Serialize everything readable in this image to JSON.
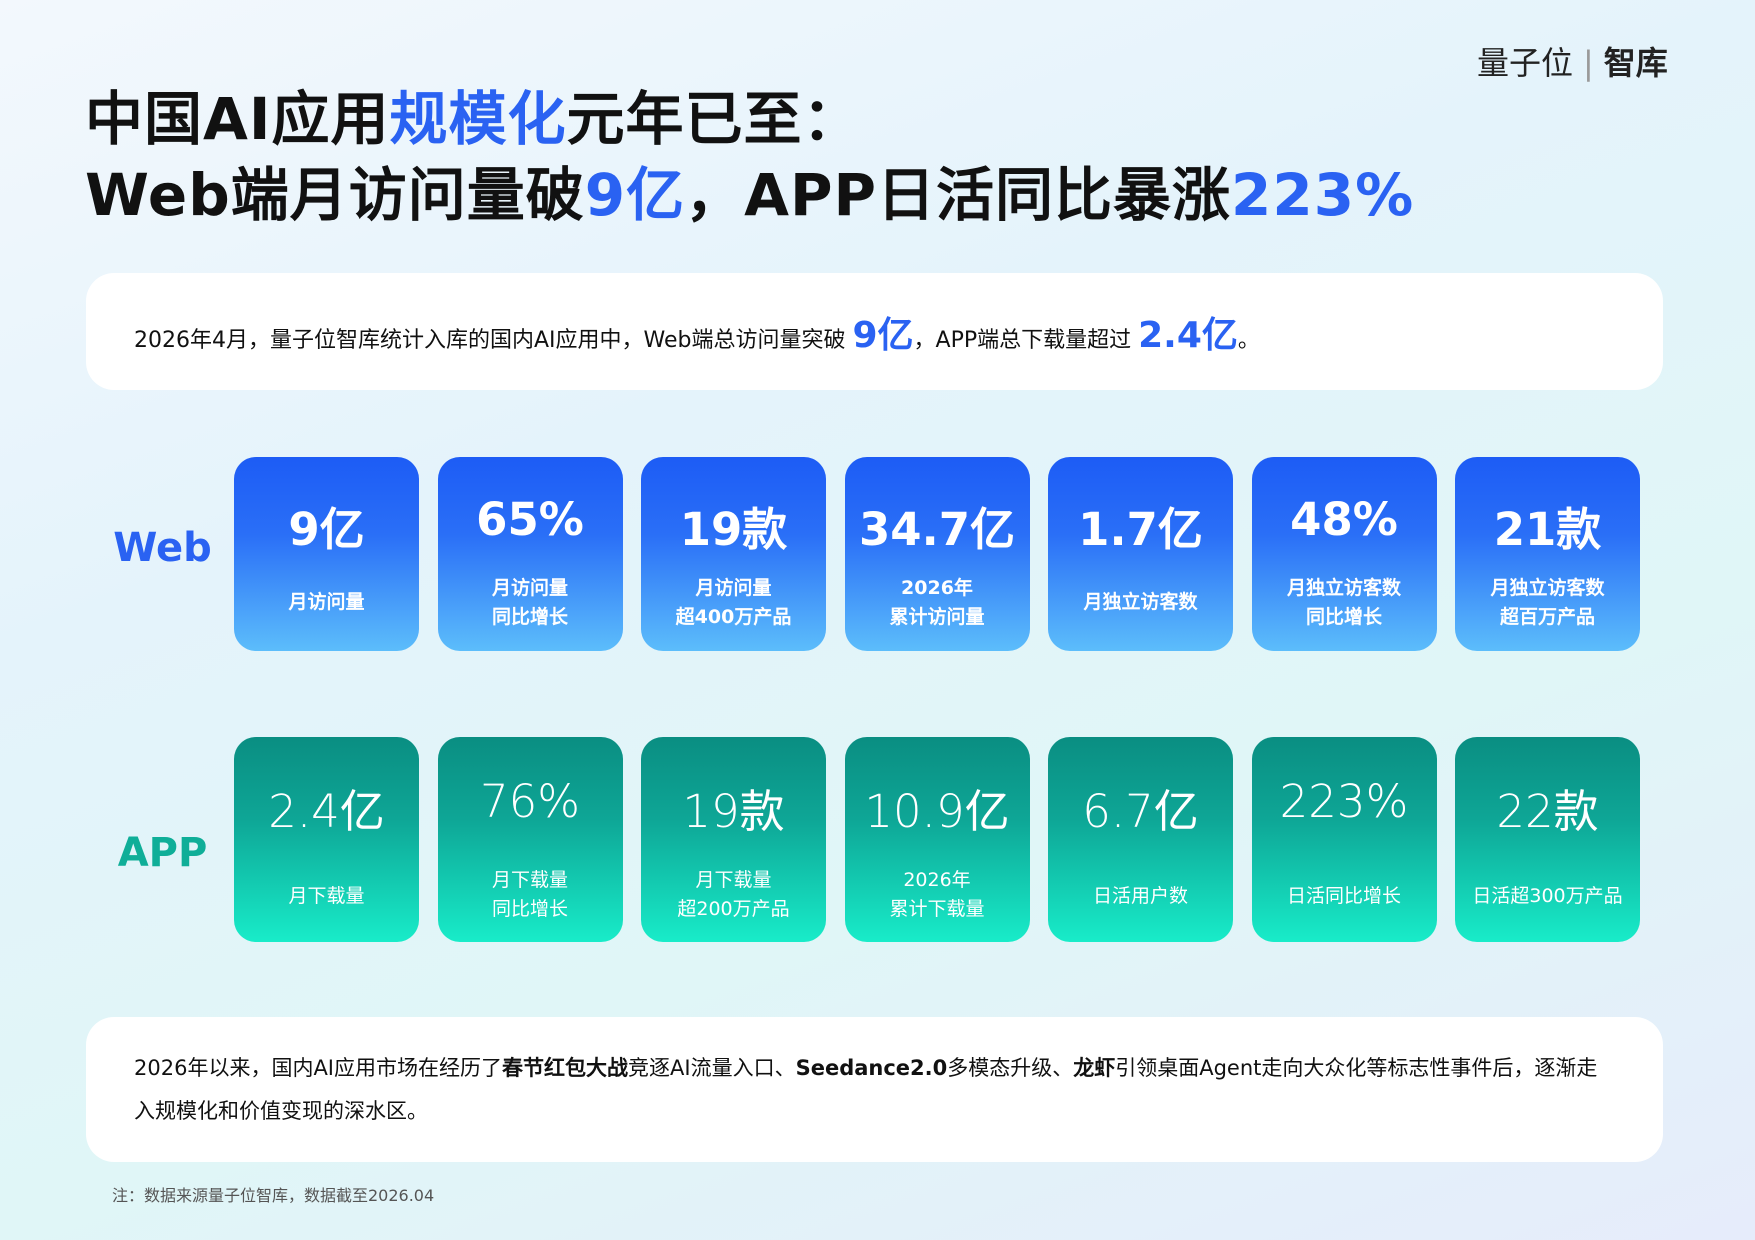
{
  "brand": {
    "name": "量子位",
    "unit": "智库"
  },
  "title": {
    "line1": [
      "中国AI应用",
      "规模化",
      "元年已至："
    ],
    "line2": [
      "Web端月访问量破",
      "9亿",
      "，APP日活同比暴涨",
      "223%"
    ]
  },
  "summary": [
    "2026年4月，量子位智库统计入库的国内AI应用中，Web端总访问量突破 ",
    "9亿",
    "，APP端总下载量超过 ",
    "2.4亿",
    "。"
  ],
  "rows": [
    {
      "label": "Web",
      "cards": [
        {
          "value": "9亿",
          "lines": [
            "月访问量"
          ]
        },
        {
          "value": "65%",
          "lines": [
            "月访问量",
            "同比增长"
          ]
        },
        {
          "value": "19款",
          "lines": [
            "月访问量",
            "超400万产品"
          ]
        },
        {
          "value": "34.7亿",
          "lines": [
            "2026年",
            "累计访问量"
          ]
        },
        {
          "value": "1.7亿",
          "lines": [
            "月独立访客数"
          ]
        },
        {
          "value": "48%",
          "lines": [
            "月独立访客数",
            "同比增长"
          ]
        },
        {
          "value": "21款",
          "lines": [
            "月独立访客数",
            "超百万产品"
          ]
        }
      ]
    },
    {
      "label": "APP",
      "cards": [
        {
          "value": "2.4亿",
          "lines": [
            "月下载量"
          ]
        },
        {
          "value": "76%",
          "lines": [
            "月下载量",
            "同比增长"
          ]
        },
        {
          "value": "19款",
          "lines": [
            "月下载量",
            "超200万产品"
          ]
        },
        {
          "value": "10.9亿",
          "lines": [
            "2026年",
            "累计下载量"
          ]
        },
        {
          "value": "6.7亿",
          "lines": [
            "日活用户数"
          ]
        },
        {
          "value": "223%",
          "lines": [
            "日活同比增长"
          ]
        },
        {
          "value": "22款",
          "lines": [
            "日活超300万产品"
          ]
        }
      ]
    }
  ],
  "note": [
    "2026年以来，国内AI应用市场在经历了",
    "春节红包大战",
    "竞逐AI流量入口、",
    "Seedance2.0",
    "多模态升级、",
    "龙虾",
    "引领桌面Agent走向大众化等标志性事件后，逐渐走入规模化和价值变现的深水区。"
  ],
  "footnote": "注：数据来源量子位智库，数据截至2026.04"
}
